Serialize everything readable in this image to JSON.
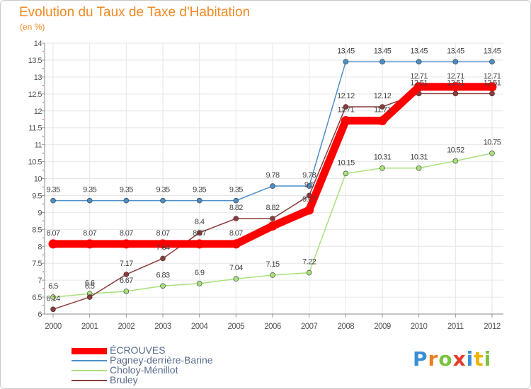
{
  "header": {
    "title": "Evolution du Taux de Taxe d'Habitation",
    "unit": "(en %)"
  },
  "chart_data": {
    "type": "line",
    "title": "Evolution du Taux de Taxe d'Habitation",
    "ylabel": "(en %)",
    "xlabel": "",
    "categories": [
      "2000",
      "2001",
      "2002",
      "2003",
      "2004",
      "2005",
      "2006",
      "2007",
      "2008",
      "2009",
      "2010",
      "2011",
      "2012"
    ],
    "ylim": [
      6,
      14
    ],
    "yticks": [
      "6",
      "6.5",
      "7",
      "7.5",
      "8",
      "8.5",
      "9",
      "9.5",
      "10",
      "10.5",
      "11",
      "11.5",
      "12",
      "12.5",
      "13",
      "13.5",
      "14"
    ],
    "grid": true,
    "series": [
      {
        "name": "ÉCROUVES",
        "color": "#ff0000",
        "values": [
          8.07,
          8.07,
          8.07,
          8.07,
          8.07,
          8.07,
          8.6,
          9.07,
          11.71,
          11.71,
          12.71,
          12.71,
          12.71
        ],
        "labels": [
          "8.07",
          "8.07",
          "8.07",
          "8.07",
          "8.07",
          "8.07",
          "",
          "9.07",
          "11.71",
          "11.71",
          "12.71",
          "12.71",
          "12.71"
        ]
      },
      {
        "name": "Pagney-derrière-Barine",
        "color": "#4d8fc7",
        "values": [
          9.35,
          9.35,
          9.35,
          9.35,
          9.35,
          9.35,
          9.78,
          9.78,
          13.45,
          13.45,
          13.45,
          13.45,
          13.45
        ],
        "labels": [
          "9.35",
          "9.35",
          "9.35",
          "9.35",
          "9.35",
          "9.35",
          "9.78",
          "9.78",
          "13.45",
          "13.45",
          "13.45",
          "13.45",
          "13.45"
        ]
      },
      {
        "name": "Choloy-Ménillot",
        "color": "#a8e07a",
        "values": [
          6.5,
          6.6,
          6.67,
          6.83,
          6.9,
          7.04,
          7.15,
          7.22,
          10.15,
          10.31,
          10.31,
          10.52,
          10.75
        ],
        "labels": [
          "6.5",
          "6.6",
          "6.67",
          "6.83",
          "6.9",
          "7.04",
          "7.15",
          "7.22",
          "10.15",
          "10.31",
          "10.31",
          "10.52",
          "10.75"
        ]
      },
      {
        "name": "Bruley",
        "color": "#8c3b3b",
        "values": [
          6.14,
          6.5,
          7.17,
          7.64,
          8.4,
          8.82,
          8.82,
          9.5,
          12.12,
          12.12,
          12.51,
          12.51,
          12.51
        ],
        "labels": [
          "6.14",
          "6.5",
          "7.17",
          "7.64",
          "8.4",
          "8.82",
          "8.82",
          "9.5",
          "12.12",
          "12.12",
          "12.51",
          "12.51",
          "12.51"
        ]
      }
    ]
  },
  "logo": {
    "letters": [
      "P",
      "r",
      "o",
      "x",
      "i",
      "t",
      "i"
    ],
    "colors": [
      "#3a8fd6",
      "#f07d1e",
      "#7cc242",
      "#e53b2c",
      "#3a8fd6",
      "#f0b400",
      "#7cc242"
    ]
  }
}
